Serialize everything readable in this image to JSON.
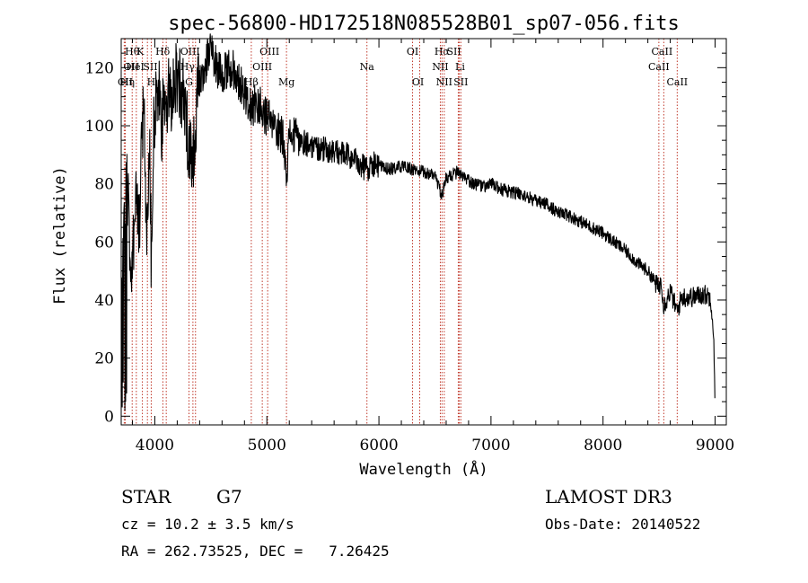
{
  "chart_data": {
    "type": "line",
    "title": "spec-56800-HD172518N085528B01_sp07-056.fits",
    "xlabel": "Wavelength (Å)",
    "ylabel": "Flux (relative)",
    "xlim": [
      3700,
      9100
    ],
    "ylim": [
      -3,
      130
    ],
    "x_ticks": [
      4000,
      5000,
      6000,
      7000,
      8000,
      9000
    ],
    "y_ticks": [
      0,
      20,
      40,
      60,
      80,
      100,
      120
    ],
    "spectrum_anchors": [
      [
        3700,
        35
      ],
      [
        3720,
        70
      ],
      [
        3750,
        80
      ],
      [
        3780,
        60
      ],
      [
        3800,
        55
      ],
      [
        3830,
        80
      ],
      [
        3860,
        60
      ],
      [
        3880,
        90
      ],
      [
        3900,
        110
      ],
      [
        3930,
        60
      ],
      [
        3950,
        100
      ],
      [
        3968,
        55
      ],
      [
        3990,
        100
      ],
      [
        4030,
        112
      ],
      [
        4060,
        100
      ],
      [
        4100,
        108
      ],
      [
        4150,
        112
      ],
      [
        4200,
        118
      ],
      [
        4250,
        110
      ],
      [
        4300,
        96
      ],
      [
        4340,
        88
      ],
      [
        4380,
        110
      ],
      [
        4430,
        118
      ],
      [
        4500,
        127
      ],
      [
        4560,
        120
      ],
      [
        4620,
        118
      ],
      [
        4700,
        120
      ],
      [
        4750,
        115
      ],
      [
        4800,
        112
      ],
      [
        4861,
        105
      ],
      [
        4900,
        108
      ],
      [
        4950,
        106
      ],
      [
        5000,
        103
      ],
      [
        5050,
        100
      ],
      [
        5100,
        98
      ],
      [
        5150,
        96
      ],
      [
        5175,
        83
      ],
      [
        5200,
        97
      ],
      [
        5300,
        95
      ],
      [
        5400,
        93
      ],
      [
        5500,
        92
      ],
      [
        5600,
        91
      ],
      [
        5700,
        90
      ],
      [
        5800,
        88
      ],
      [
        5893,
        85
      ],
      [
        5950,
        87
      ],
      [
        6000,
        86
      ],
      [
        6100,
        85
      ],
      [
        6200,
        86
      ],
      [
        6300,
        85
      ],
      [
        6400,
        84
      ],
      [
        6500,
        83
      ],
      [
        6563,
        76
      ],
      [
        6600,
        82
      ],
      [
        6700,
        84
      ],
      [
        6750,
        82
      ],
      [
        6850,
        80
      ],
      [
        6950,
        79
      ],
      [
        7000,
        80
      ],
      [
        7100,
        78
      ],
      [
        7200,
        77
      ],
      [
        7300,
        76
      ],
      [
        7400,
        74
      ],
      [
        7500,
        73
      ],
      [
        7600,
        70
      ],
      [
        7700,
        69
      ],
      [
        7800,
        67
      ],
      [
        7900,
        65
      ],
      [
        8000,
        63
      ],
      [
        8100,
        60
      ],
      [
        8200,
        57
      ],
      [
        8300,
        53
      ],
      [
        8400,
        50
      ],
      [
        8498,
        44
      ],
      [
        8520,
        47
      ],
      [
        8542,
        38
      ],
      [
        8600,
        43
      ],
      [
        8662,
        36
      ],
      [
        8700,
        41
      ],
      [
        8800,
        41
      ],
      [
        8900,
        42
      ],
      [
        8960,
        41
      ],
      [
        8985,
        30
      ],
      [
        9000,
        5
      ]
    ],
    "lines": [
      {
        "name": "Hθ",
        "wl": 3798,
        "row": 0,
        "dx": 0
      },
      {
        "name": "OII",
        "wl": 3727,
        "row": 1,
        "dx": 8
      },
      {
        "name": "CII",
        "wl": 3736,
        "row": 2,
        "dx": 0
      },
      {
        "name": "Hη",
        "wl": 3835,
        "row": 2,
        "dx": -10
      },
      {
        "name": "HeI",
        "wl": 3889,
        "row": 1,
        "dx": -8
      },
      {
        "name": "K",
        "wl": 3934,
        "row": 0,
        "dx": -8
      },
      {
        "name": "SII",
        "wl": 4072,
        "row": 1,
        "dx": -14
      },
      {
        "name": "H",
        "wl": 3968,
        "row": 2,
        "dx": 0
      },
      {
        "name": "Hδ",
        "wl": 4102,
        "row": 0,
        "dx": -4
      },
      {
        "name": "OIII",
        "wl": 4363,
        "row": 0,
        "dx": -6
      },
      {
        "name": "Hγ",
        "wl": 4340,
        "row": 1,
        "dx": -6
      },
      {
        "name": "G",
        "wl": 4305,
        "row": 2,
        "dx": 0
      },
      {
        "name": "Hβ",
        "wl": 4861,
        "row": 2,
        "dx": 0
      },
      {
        "name": "OIII",
        "wl": 4959,
        "row": 0,
        "dx": 8
      },
      {
        "name": "OIII",
        "wl": 5007,
        "row": 1,
        "dx": -6
      },
      {
        "name": "Mg",
        "wl": 5175,
        "row": 2,
        "dx": 0
      },
      {
        "name": "Na",
        "wl": 5893,
        "row": 1,
        "dx": 0
      },
      {
        "name": "OI",
        "wl": 6300,
        "row": 0,
        "dx": 0
      },
      {
        "name": "OI",
        "wl": 6364,
        "row": 2,
        "dx": -2
      },
      {
        "name": "Hα",
        "wl": 6563,
        "row": 0,
        "dx": 0
      },
      {
        "name": "NII",
        "wl": 6548,
        "row": 1,
        "dx": 0
      },
      {
        "name": "NII",
        "wl": 6583,
        "row": 2,
        "dx": 0
      },
      {
        "name": "SII",
        "wl": 6717,
        "row": 0,
        "dx": -6
      },
      {
        "name": "Li",
        "wl": 6708,
        "row": 1,
        "dx": 2
      },
      {
        "name": "SII",
        "wl": 6731,
        "row": 2,
        "dx": 0
      },
      {
        "name": "CaII",
        "wl": 8542,
        "row": 0,
        "dx": -2
      },
      {
        "name": "CaII",
        "wl": 8498,
        "row": 1,
        "dx": 0
      },
      {
        "name": "CaII",
        "wl": 8662,
        "row": 2,
        "dx": 0
      }
    ]
  },
  "info": {
    "object_class": "STAR",
    "subclass": "G7",
    "survey": "LAMOST DR3",
    "redshift_line": "cz = 10.2 ± 3.5 km/s",
    "obs_date_line": "Obs-Date: 20140522",
    "coords_line": "RA = 262.73525, DEC =   7.26425"
  }
}
